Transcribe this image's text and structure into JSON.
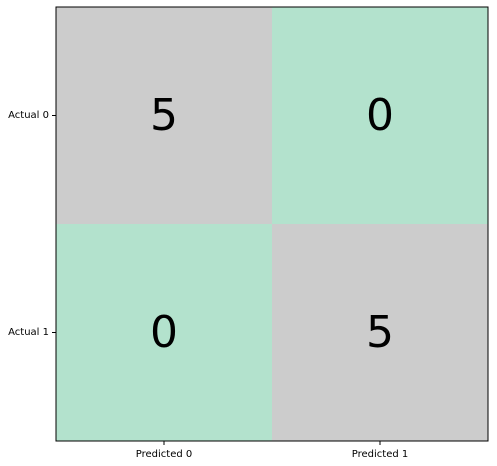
{
  "chart_data": {
    "type": "heatmap",
    "title": "",
    "xlabel": "",
    "ylabel": "",
    "x_categories": [
      "Predicted 0",
      "Predicted 1"
    ],
    "y_categories": [
      "Actual 0",
      "Actual 1"
    ],
    "values": [
      [
        5,
        0
      ],
      [
        0,
        5
      ]
    ],
    "colors": {
      "high": "#cccccc",
      "low": "#b3e2cd"
    },
    "grid": false,
    "legend": "none"
  }
}
